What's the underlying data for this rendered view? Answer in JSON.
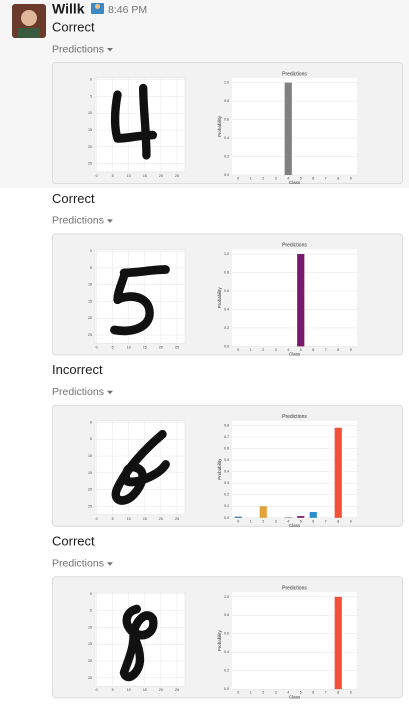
{
  "header": {
    "user": "Willk",
    "time": "8:46 PM"
  },
  "messages": [
    {
      "status": "Correct",
      "attachment": "Predictions",
      "image": {
        "xticks": [
          0,
          5,
          10,
          15,
          20,
          25
        ],
        "yticks": [
          0,
          5,
          10,
          15,
          20,
          25
        ]
      },
      "chart_data": {
        "type": "bar",
        "title": "Predictions",
        "xlabel": "Class",
        "ylabel": "Probability",
        "categories": [
          "0",
          "1",
          "2",
          "3",
          "4",
          "5",
          "6",
          "7",
          "8",
          "9"
        ],
        "values": [
          0,
          0,
          0,
          0,
          1,
          0,
          0,
          0,
          0,
          0
        ],
        "colors": [
          "#1f77b4",
          "#1f77b4",
          "#e3a33b",
          "#e3a33b",
          "#808080",
          "#7a1a6e",
          "#2a8fd0",
          "#2a8fd0",
          "#f4513a",
          "#f4513a"
        ],
        "ylim": [
          0,
          1.05
        ],
        "yticks": [
          {
            "value": 0,
            "label": "0.0"
          },
          0.2,
          0.4,
          0.6,
          0.8,
          {
            "value": 1,
            "label": "1.0"
          }
        ]
      }
    },
    {
      "status": "Correct",
      "attachment": "Predictions",
      "image": {
        "xticks": [
          0,
          5,
          10,
          15,
          20,
          25
        ],
        "yticks": [
          0,
          5,
          10,
          15,
          20,
          25
        ]
      },
      "chart_data": {
        "type": "bar",
        "title": "Predictions",
        "xlabel": "Class",
        "ylabel": "Probability",
        "categories": [
          "0",
          "1",
          "2",
          "3",
          "4",
          "5",
          "6",
          "7",
          "8",
          "9"
        ],
        "values": [
          0,
          0,
          0,
          0,
          0,
          1,
          0,
          0,
          0,
          0
        ],
        "colors": [
          "#1f77b4",
          "#1f77b4",
          "#e3a33b",
          "#e3a33b",
          "#808080",
          "#7a1a6e",
          "#2a8fd0",
          "#2a8fd0",
          "#f4513a",
          "#f4513a"
        ],
        "ylim": [
          0,
          1.05
        ],
        "yticks": [
          {
            "value": 0,
            "label": "0.0"
          },
          0.2,
          0.4,
          0.6,
          0.8,
          {
            "value": 1,
            "label": "1.0"
          }
        ]
      }
    },
    {
      "status": "Incorrect",
      "attachment": "Predictions",
      "image": {
        "xticks": [
          0,
          5,
          10,
          15,
          20,
          25
        ],
        "yticks": [
          0,
          5,
          10,
          15,
          20,
          25
        ]
      },
      "chart_data": {
        "type": "bar",
        "title": "Predictions",
        "xlabel": "Class",
        "ylabel": "Probability",
        "categories": [
          "0",
          "1",
          "2",
          "3",
          "4",
          "5",
          "6",
          "7",
          "8",
          "9"
        ],
        "values": [
          0.01,
          0,
          0.1,
          0,
          0.005,
          0.015,
          0.05,
          0,
          0.78,
          0
        ],
        "colors": [
          "#1f77b4",
          "#1f77b4",
          "#e3a33b",
          "#e3a33b",
          "#808080",
          "#7a1a6e",
          "#2a8fd0",
          "#2a8fd0",
          "#f4513a",
          "#f4513a"
        ],
        "ylim": [
          0,
          0.84
        ],
        "yticks": [
          {
            "value": 0,
            "label": "0.0"
          },
          0.1,
          0.2,
          0.3,
          0.4,
          0.5,
          0.6,
          0.7,
          0.8
        ]
      }
    },
    {
      "status": "Correct",
      "attachment": "Predictions",
      "image": {
        "xticks": [
          0,
          5,
          10,
          15,
          20,
          25
        ],
        "yticks": [
          0,
          5,
          10,
          15,
          20,
          25
        ]
      },
      "chart_data": {
        "type": "bar",
        "title": "Predictions",
        "xlabel": "Class",
        "ylabel": "Probability",
        "categories": [
          "0",
          "1",
          "2",
          "3",
          "4",
          "5",
          "6",
          "7",
          "8",
          "9"
        ],
        "values": [
          0,
          0,
          0,
          0,
          0,
          0,
          0,
          0,
          1,
          0
        ],
        "colors": [
          "#1f77b4",
          "#1f77b4",
          "#e3a33b",
          "#e3a33b",
          "#808080",
          "#7a1a6e",
          "#2a8fd0",
          "#2a8fd0",
          "#f4513a",
          "#f4513a"
        ],
        "ylim": [
          0,
          1.05
        ],
        "yticks": [
          {
            "value": 0,
            "label": "0.0"
          },
          0.2,
          0.4,
          0.6,
          0.8,
          {
            "value": 1,
            "label": "1.0"
          }
        ]
      }
    }
  ]
}
